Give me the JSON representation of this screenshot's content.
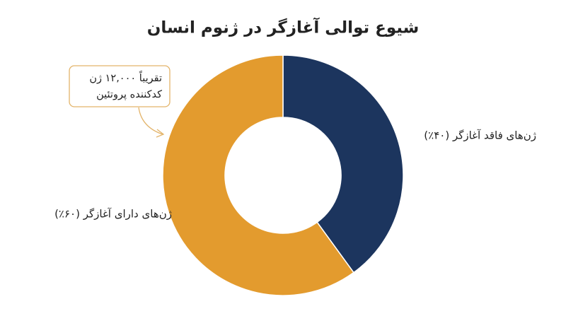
{
  "chart_data": {
    "type": "donut",
    "title": "شیوع توالی آغازگر در ژنوم انسان",
    "categories": [
      "ژن‌های فاقد آغازگر (۴۰٪)",
      "ژن‌های دارای آغازگر (۶۰٪)"
    ],
    "values": [
      40,
      60
    ],
    "colors": [
      "#1c355e",
      "#e39b2e"
    ],
    "annotation": [
      "تقریباً ۱۲,۰۰۰ ژن",
      "کدکننده پروتئین"
    ]
  }
}
